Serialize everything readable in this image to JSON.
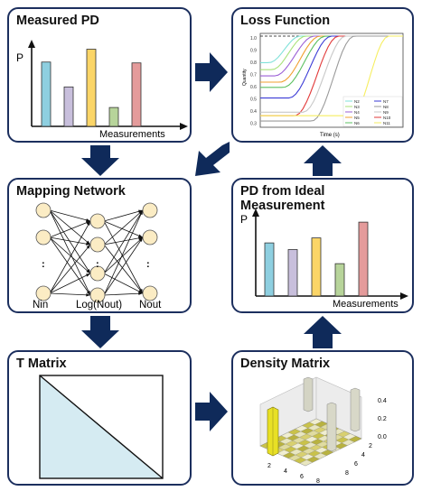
{
  "colors": {
    "border": "#1c2f5e",
    "arrow": "#0f2a5a",
    "bar_cyan": "#8ecfe0",
    "bar_lavender": "#c8bfdc",
    "bar_yellow": "#fbd567",
    "bar_green": "#b7d49a",
    "bar_rose": "#e49b9b",
    "node_fill": "#fbecc4",
    "t_matrix_fill": "#d5ebf2"
  },
  "panels": {
    "measured_pd": {
      "title": "Measured PD",
      "y_label": "P",
      "x_label": "Measurements",
      "bar_values": [
        0.75,
        0.46,
        0.9,
        0.22,
        0.74
      ]
    },
    "loss_function": {
      "title": "Loss Function",
      "x_label": "Time (s)",
      "y_label": "Quantity",
      "y_ticks": [
        "1.0",
        "0.9",
        "0.8",
        "0.7",
        "0.6",
        "0.5",
        "0.4",
        "0.3"
      ],
      "legend": [
        {
          "name": "N2",
          "color": "#7fe1d9"
        },
        {
          "name": "N7",
          "color": "#3a3ad6"
        },
        {
          "name": "N3",
          "color": "#a8e27a"
        },
        {
          "name": "N8",
          "color": "#9a9a9a"
        },
        {
          "name": "N4",
          "color": "#9b5fd6"
        },
        {
          "name": "N9",
          "color": "#c8c8c8"
        },
        {
          "name": "N5",
          "color": "#f0a030"
        },
        {
          "name": "N10",
          "color": "#e23a3a"
        },
        {
          "name": "N6",
          "color": "#5cc060"
        },
        {
          "name": "N11",
          "color": "#f6ee60"
        }
      ]
    },
    "mapping_network": {
      "title": "Mapping Network",
      "labels": [
        "Nin",
        "Log(Nout)",
        "Nout"
      ],
      "ellipsis": ":"
    },
    "pd_ideal": {
      "title": "PD from Ideal Measurement",
      "y_label": "P",
      "x_label": "Measurements",
      "bar_values": [
        0.64,
        0.56,
        0.7,
        0.39,
        0.89
      ]
    },
    "t_matrix": {
      "title": "T Matrix"
    },
    "density_matrix": {
      "title": "Density Matrix",
      "z_ticks": [
        "0.4",
        "0.2",
        "0.0"
      ],
      "x_ticks": [
        "2",
        "4",
        "6",
        "8"
      ],
      "y_ticks": [
        "2",
        "4",
        "6",
        "8"
      ]
    }
  }
}
